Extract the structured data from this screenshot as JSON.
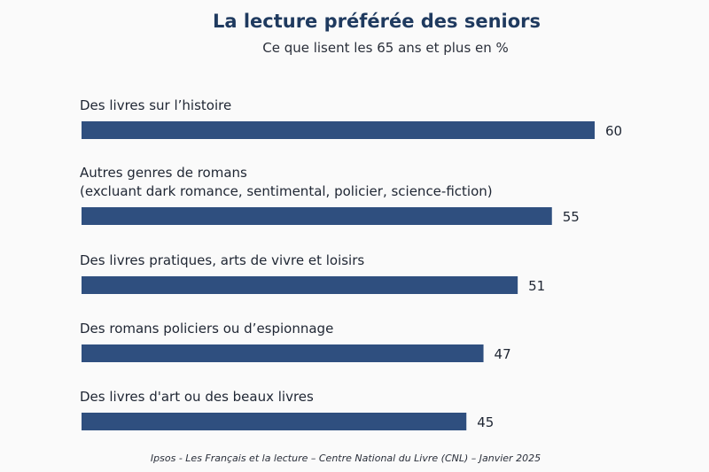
{
  "chart_data": {
    "type": "bar",
    "orientation": "horizontal",
    "title": "La lecture préférée des seniors",
    "subtitle": "Ce que lisent les 65 ans et plus en %",
    "categories": [
      [
        "Des livres sur l’histoire"
      ],
      [
        "Autres genres de romans",
        "(excluant dark romance, sentimental, policier, science-fiction)"
      ],
      [
        "Des livres pratiques, arts de vivre et loisirs"
      ],
      [
        "Des romans policiers ou d’espionnage"
      ],
      [
        "Des livres d'art ou des beaux livres"
      ]
    ],
    "values": [
      60,
      55,
      51,
      47,
      45
    ],
    "value_labels": [
      "60",
      "55",
      "51",
      "47",
      "45"
    ],
    "bar_color": "#2f4f7f",
    "xlim": [
      0,
      60
    ],
    "grid": false,
    "legend": "none",
    "source": "Ipsos - Les Français et la lecture – Centre National du Livre (CNL) – Janvier 2025"
  }
}
